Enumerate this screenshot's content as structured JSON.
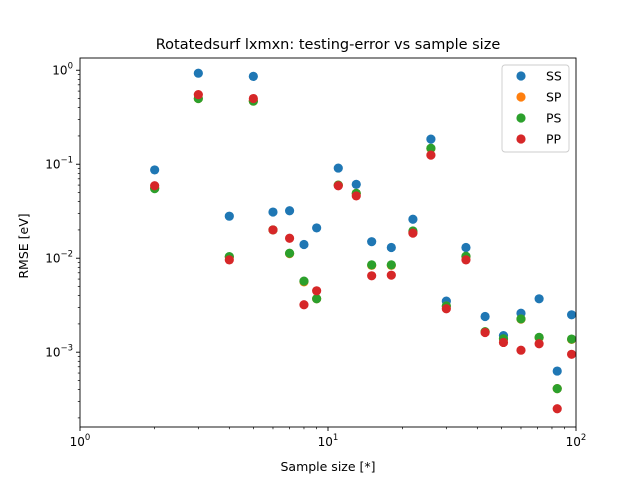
{
  "chart_data": {
    "type": "scatter",
    "title": "Rotatedsurf lxmxn: testing-error vs sample size",
    "xlabel": "Sample size [*]",
    "ylabel": "RMSE [eV]",
    "xscale": "log",
    "yscale": "log",
    "xlim": [
      1,
      100
    ],
    "ylim": [
      0.00016,
      1.35
    ],
    "grid": false,
    "legend_position": "top-right",
    "x_ticks": [
      {
        "value": 1,
        "base": "10",
        "exp": "0"
      },
      {
        "value": 10,
        "base": "10",
        "exp": "1"
      },
      {
        "value": 100,
        "base": "10",
        "exp": "2"
      }
    ],
    "y_ticks": [
      {
        "value": 0.001,
        "base": "10",
        "exp": "−3"
      },
      {
        "value": 0.01,
        "base": "10",
        "exp": "−2"
      },
      {
        "value": 0.1,
        "base": "10",
        "exp": "−1"
      },
      {
        "value": 1,
        "base": "10",
        "exp": "0"
      }
    ],
    "series": [
      {
        "name": "SS",
        "color": "#1f77b4",
        "points": [
          [
            2,
            0.087
          ],
          [
            3,
            0.93
          ],
          [
            4,
            0.028
          ],
          [
            5,
            0.86
          ],
          [
            6,
            0.031
          ],
          [
            7,
            0.032
          ],
          [
            8,
            0.014
          ],
          [
            9,
            0.021
          ],
          [
            11,
            0.091
          ],
          [
            13,
            0.061
          ],
          [
            15,
            0.015
          ],
          [
            18,
            0.013
          ],
          [
            22,
            0.026
          ],
          [
            26,
            0.185
          ],
          [
            30,
            0.0035
          ],
          [
            36,
            0.013
          ],
          [
            43,
            0.0024
          ],
          [
            51,
            0.0015
          ],
          [
            60,
            0.0026
          ],
          [
            71,
            0.0037
          ],
          [
            84,
            0.00063
          ],
          [
            96,
            0.0025
          ]
        ]
      },
      {
        "name": "SP",
        "color": "#ff7f0e",
        "points": [
          [
            2,
            0.056
          ],
          [
            3,
            0.5
          ],
          [
            4,
            0.0103
          ],
          [
            5,
            0.47
          ],
          [
            6,
            0.02
          ],
          [
            7,
            0.0112
          ],
          [
            8,
            0.0056
          ],
          [
            9,
            0.0037
          ],
          [
            11,
            0.06
          ],
          [
            13,
            0.049
          ],
          [
            15,
            0.0084
          ],
          [
            18,
            0.0084
          ],
          [
            22,
            0.019
          ],
          [
            26,
            0.147
          ],
          [
            30,
            0.0031
          ],
          [
            36,
            0.0104
          ],
          [
            43,
            0.00165
          ],
          [
            51,
            0.00138
          ],
          [
            60,
            0.00225
          ],
          [
            71,
            0.00143
          ],
          [
            84,
            0.00041
          ],
          [
            96,
            0.00137
          ]
        ]
      },
      {
        "name": "PS",
        "color": "#2ca02c",
        "points": [
          [
            2,
            0.055
          ],
          [
            3,
            0.5
          ],
          [
            4,
            0.0104
          ],
          [
            5,
            0.47
          ],
          [
            6,
            0.02
          ],
          [
            7,
            0.0113
          ],
          [
            8,
            0.0057
          ],
          [
            9,
            0.0037
          ],
          [
            11,
            0.06
          ],
          [
            13,
            0.049
          ],
          [
            15,
            0.0085
          ],
          [
            18,
            0.0085
          ],
          [
            22,
            0.0195
          ],
          [
            26,
            0.148
          ],
          [
            30,
            0.0031
          ],
          [
            36,
            0.0105
          ],
          [
            43,
            0.00165
          ],
          [
            51,
            0.00139
          ],
          [
            60,
            0.00226
          ],
          [
            71,
            0.00144
          ],
          [
            84,
            0.00041
          ],
          [
            96,
            0.00138
          ]
        ]
      },
      {
        "name": "PP",
        "color": "#d62728",
        "points": [
          [
            2,
            0.059
          ],
          [
            3,
            0.55
          ],
          [
            4,
            0.0096
          ],
          [
            5,
            0.5
          ],
          [
            6,
            0.02
          ],
          [
            7,
            0.0163
          ],
          [
            8,
            0.0032
          ],
          [
            9,
            0.0045
          ],
          [
            11,
            0.059
          ],
          [
            13,
            0.046
          ],
          [
            15,
            0.0065
          ],
          [
            18,
            0.0066
          ],
          [
            22,
            0.0185
          ],
          [
            26,
            0.125
          ],
          [
            30,
            0.0029
          ],
          [
            36,
            0.0096
          ],
          [
            43,
            0.00162
          ],
          [
            51,
            0.00127
          ],
          [
            60,
            0.00105
          ],
          [
            71,
            0.00123
          ],
          [
            84,
            0.00025
          ],
          [
            96,
            0.00095
          ]
        ]
      }
    ]
  }
}
